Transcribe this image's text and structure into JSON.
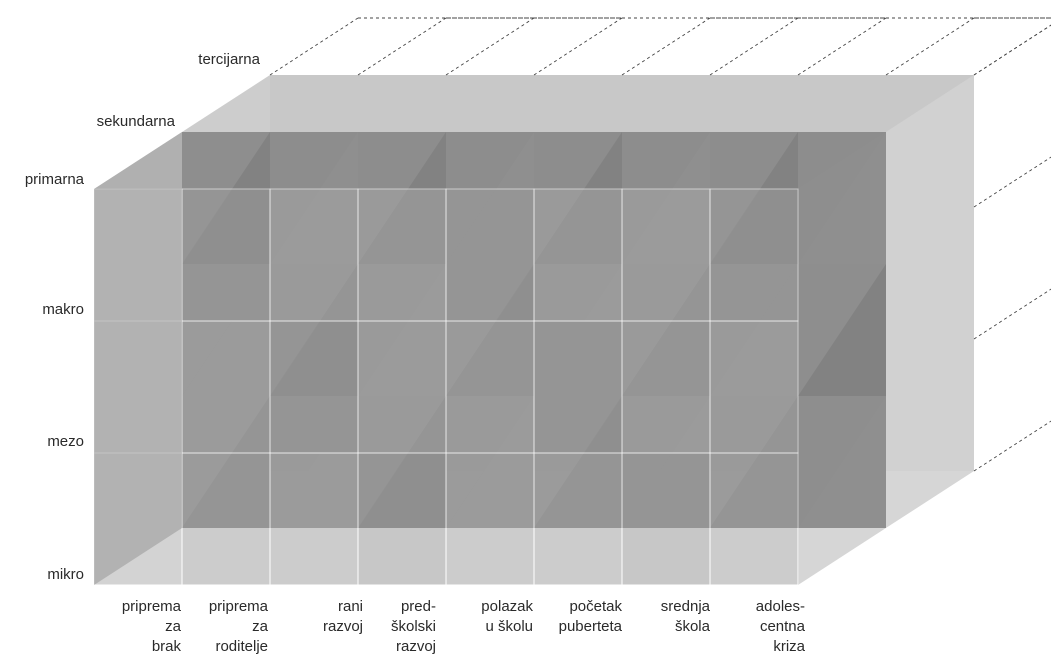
{
  "prevention_levels": {
    "primary": "primarna",
    "secondary": "sekundarna",
    "tertiary": "tercijarna"
  },
  "system_levels": [
    "makro",
    "mezo",
    "mikro"
  ],
  "life_stages": [
    "priprema\nza\nbrak",
    "priprema\nza\nroditelje",
    "rani\nrazvoj",
    "pred-\nškolski\nrazvoj",
    "polazak\nu školu",
    "početak\npuberteta",
    "srednja\nškola",
    "adoles-\ncentna\nkriza"
  ],
  "colors": {
    "front_light": "#b0b0b0",
    "front_dark": "#7f7f7f",
    "top_face": "#c4c4c4",
    "back_face": "#d8d8d8",
    "edge": "#ffffff",
    "dashed": "#444444"
  }
}
